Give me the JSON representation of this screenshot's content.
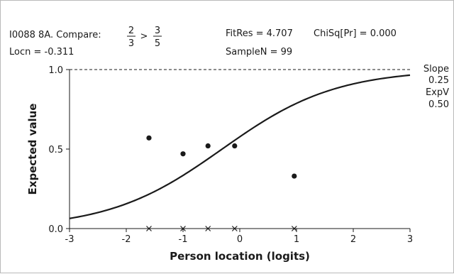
{
  "header": {
    "item_text": "I0088 8A. Compare:",
    "fraction_left": {
      "num": "2",
      "den": "3"
    },
    "comparator": ">",
    "fraction_right": {
      "num": "3",
      "den": "5"
    },
    "fitres": "FitRes = 4.707",
    "chisq": "ChiSq[Pr] = 0.000",
    "locn": "Locn = -0.311",
    "samplen": "SampleN = 99"
  },
  "side_stats": {
    "slope_label": "Slope",
    "slope_value": "0.25",
    "expv_label": "ExpV",
    "expv_value": "0.50"
  },
  "chart_data": {
    "type": "line",
    "xlabel": "Person location (logits)",
    "ylabel": "Expected value",
    "xlim": [
      -3,
      3
    ],
    "ylim": [
      0,
      1
    ],
    "x_ticks": [
      "-3",
      "-2",
      "-1",
      "0",
      "1",
      "2",
      "3"
    ],
    "y_ticks": [
      "0.0",
      "0.5",
      "1.0"
    ],
    "reference_line": {
      "y": 1.0,
      "style": "dashed"
    },
    "icc_curve": {
      "location": -0.311,
      "slope": 0.25,
      "x": [
        -3.0,
        -2.5,
        -2.0,
        -1.5,
        -1.0,
        -0.5,
        0.0,
        0.5,
        1.0,
        1.5,
        2.0,
        2.5,
        3.0
      ]
    },
    "observed_means": {
      "x": [
        -1.6,
        -1.0,
        -0.56,
        -0.09,
        0.96
      ],
      "y": [
        0.57,
        0.47,
        0.52,
        0.52,
        0.33
      ]
    },
    "class_interval_markers": {
      "x": [
        -1.6,
        -1.0,
        -0.56,
        -0.09,
        0.96
      ],
      "symbol": "x"
    }
  }
}
